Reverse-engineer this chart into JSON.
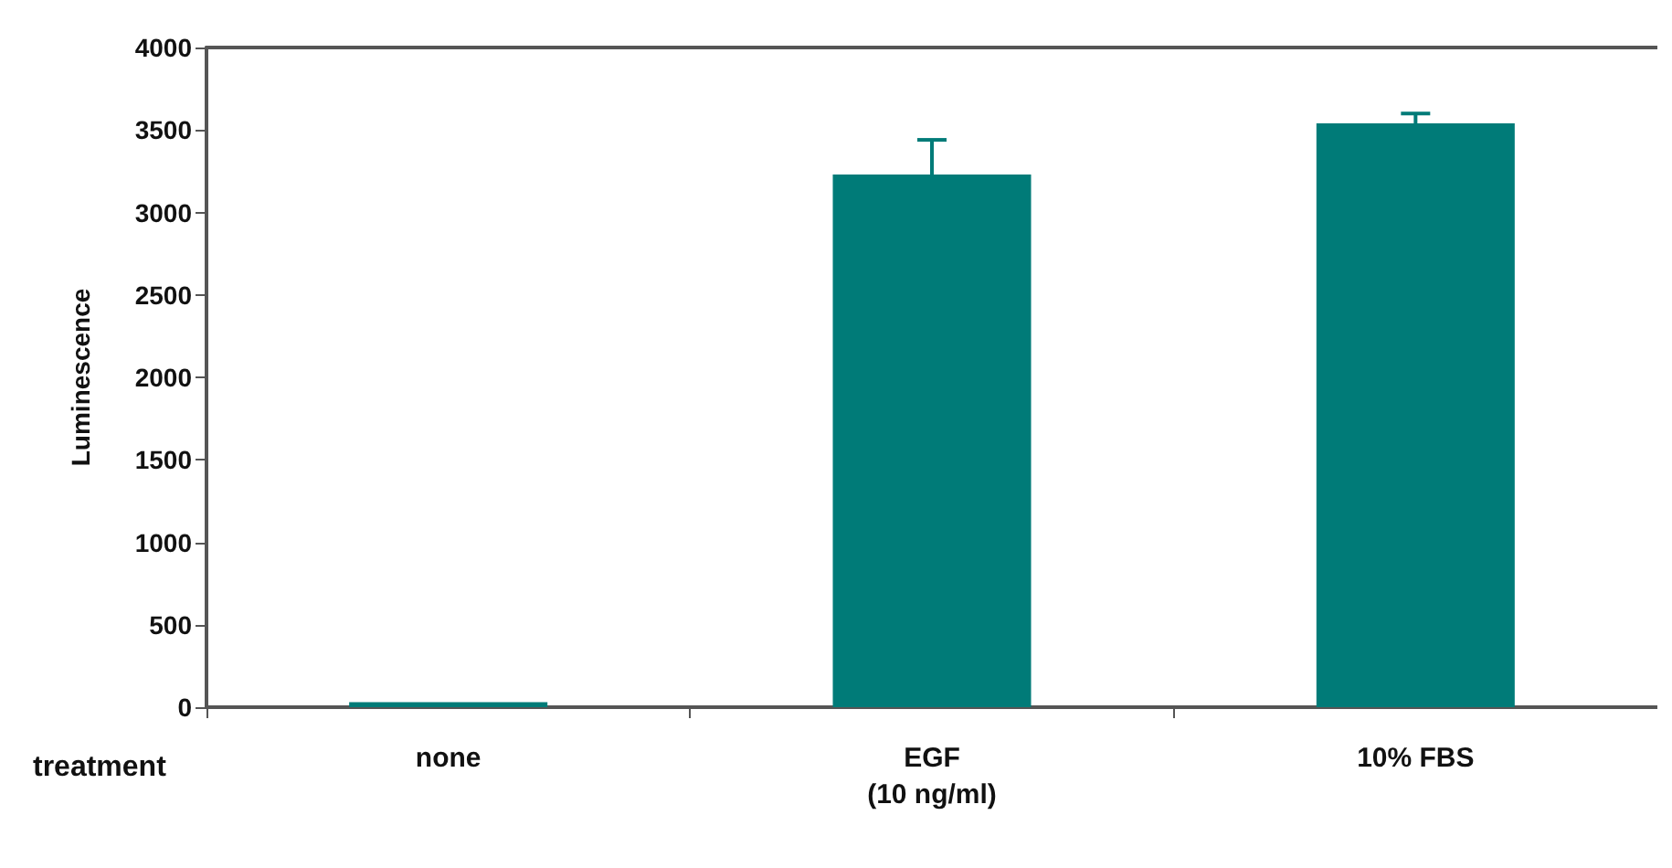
{
  "chart_data": {
    "type": "bar",
    "xlabel": "treatment",
    "ylabel": "Luminescence",
    "categories": [
      "none",
      "EGF\n(10 ng/ml)",
      "10% FBS"
    ],
    "values": [
      30,
      3230,
      3540
    ],
    "errors": [
      null,
      [
        3230,
        3440
      ],
      [
        3540,
        3600
      ]
    ],
    "color": "#007b78",
    "ylim": [
      0,
      4000
    ],
    "yticks": [
      0,
      500,
      1000,
      1500,
      2000,
      2500,
      3000,
      3500,
      4000
    ],
    "grid": false
  }
}
